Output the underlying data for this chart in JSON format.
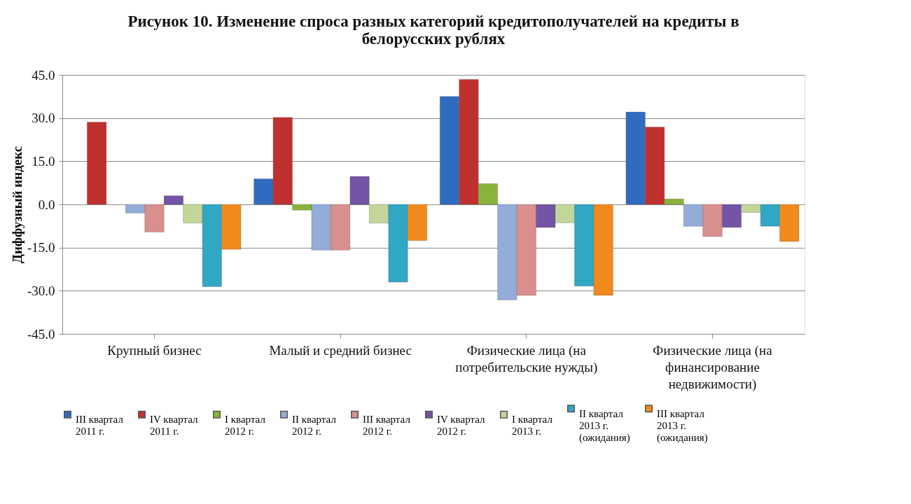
{
  "chart_data": {
    "type": "bar",
    "title": "Рисунок 10. Изменение спроса разных категорий кредитополучателей на кредиты в белорусских рублях",
    "ylabel": "Диффузный индекс",
    "categories": [
      "Крупный бизнес",
      "Малый и средний бизнес",
      "Физические лица (на потребительские нужды)",
      "Физические лица (на финансирование недвижимости)"
    ],
    "series": [
      {
        "name": "III квартал 2011 г.",
        "color": "#2f6cc0",
        "values": [
          null,
          8.9,
          37.5,
          32.1
        ]
      },
      {
        "name": "IV квартал 2011 г.",
        "color": "#c0302e",
        "values": [
          28.6,
          30.2,
          43.4,
          26.9
        ]
      },
      {
        "name": "I квартал 2012 г.",
        "color": "#8bb23a",
        "values": [
          null,
          -2.0,
          7.2,
          1.9
        ]
      },
      {
        "name": "II квартал 2012 г.",
        "color": "#93acd8",
        "values": [
          -3.0,
          -15.9,
          -33.2,
          -7.6
        ]
      },
      {
        "name": "III квартал 2012 г.",
        "color": "#d98f8e",
        "values": [
          -9.6,
          -15.9,
          -31.6,
          -11.2
        ]
      },
      {
        "name": "IV квартал 2012 г.",
        "color": "#7454a6",
        "values": [
          3.0,
          9.7,
          -8.0,
          -8.0
        ]
      },
      {
        "name": "I квартал 2013 г.",
        "color": "#c2d69a",
        "values": [
          -6.5,
          -6.5,
          -6.4,
          -2.8
        ]
      },
      {
        "name": "II квартал 2013 г. (ожидания)",
        "color": "#30a7c5",
        "values": [
          -28.6,
          -27.0,
          -28.4,
          -7.6
        ]
      },
      {
        "name": "III квартал 2013 г. (ожидания)",
        "color": "#f08a1d",
        "values": [
          -15.6,
          -12.6,
          -31.6,
          -12.9
        ]
      }
    ],
    "ylim": [
      -45,
      45
    ],
    "yticks": [
      {
        "value": -45,
        "label": "-45.0"
      },
      {
        "value": -30,
        "label": "-30.0"
      },
      {
        "value": -15,
        "label": "-15.0"
      },
      {
        "value": 0,
        "label": "0.0"
      },
      {
        "value": 15,
        "label": "15.0"
      },
      {
        "value": 30,
        "label": "30.0"
      },
      {
        "value": 45,
        "label": "45.0"
      }
    ],
    "grid": "y",
    "legend": "bottom"
  }
}
